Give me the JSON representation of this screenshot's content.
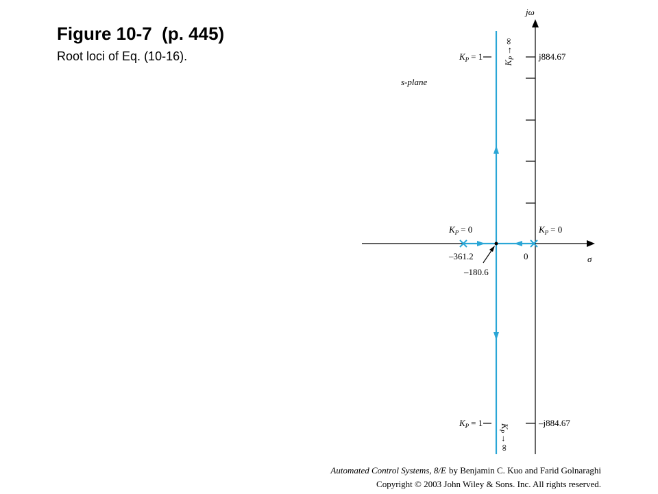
{
  "header": {
    "title": "Figure 10-7  (p. 445)",
    "subtitle": "Root loci of Eq. (10-16)."
  },
  "diagram": {
    "plane_label": "s-plane",
    "imag_axis_label": "jω",
    "real_axis_label": "σ",
    "top_gain": {
      "symbol": "K",
      "subscript": "P",
      "relation": "= 1"
    },
    "top_limit": {
      "symbol": "K",
      "subscript": "P",
      "arrow": "→",
      "limit": "∞"
    },
    "top_crossing": "j884.67",
    "left_pole_gain": {
      "symbol": "K",
      "subscript": "P",
      "relation": "= 0"
    },
    "right_pole_gain": {
      "symbol": "K",
      "subscript": "P",
      "relation": "= 0"
    },
    "left_pole": "–361.2",
    "origin": "0",
    "breakaway": "–180.6",
    "bottom_gain": {
      "symbol": "K",
      "subscript": "P",
      "relation": "= 1"
    },
    "bottom_limit": {
      "symbol": "K",
      "subscript": "P",
      "arrow": "→",
      "limit": "∞"
    },
    "bottom_crossing": "–j884.67"
  },
  "footer": {
    "book_title": "Automated Control Systems, 8/E",
    "authors": "by Benjamin C. Kuo and Farid Golnaraghi",
    "copyright": "Copyright © 2003 John Wiley & Sons. Inc. All rights reserved."
  }
}
